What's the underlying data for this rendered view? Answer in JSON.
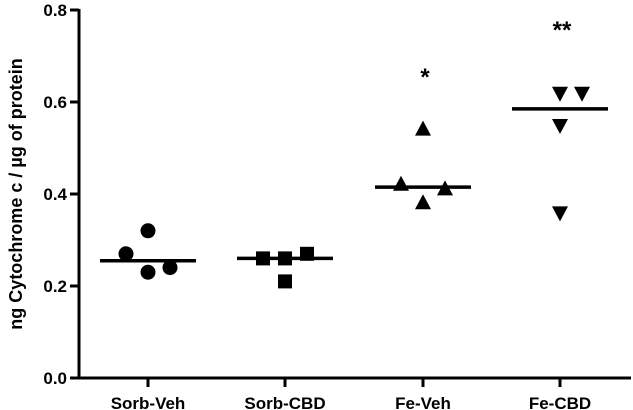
{
  "chart_data": {
    "type": "scatter",
    "title": "",
    "xlabel": "",
    "ylabel": "ng Cytochrome c / µg of protein",
    "ylim": [
      0,
      0.8
    ],
    "yticks": [
      "0.0",
      "0.2",
      "0.4",
      "0.6",
      "0.8"
    ],
    "ytick_values": [
      0,
      0.2,
      0.4,
      0.6,
      0.8
    ],
    "grid": false,
    "legend": null,
    "categories": [
      "Sorb-Veh",
      "Sorb-CBD",
      "Fe-Veh",
      "Fe-CBD"
    ],
    "series": [
      {
        "name": "Sorb-Veh",
        "marker": "circle",
        "values": [
          0.32,
          0.27,
          0.23,
          0.24
        ],
        "offsets": [
          0,
          -1,
          0,
          1
        ],
        "median": 0.255,
        "significance": ""
      },
      {
        "name": "Sorb-CBD",
        "marker": "square",
        "values": [
          0.26,
          0.26,
          0.27,
          0.21
        ],
        "offsets": [
          -1,
          0,
          1,
          0
        ],
        "median": 0.26,
        "significance": ""
      },
      {
        "name": "Fe-Veh",
        "marker": "triangle-up",
        "values": [
          0.54,
          0.42,
          0.41,
          0.38
        ],
        "offsets": [
          0,
          -1,
          1,
          0
        ],
        "median": 0.415,
        "significance": "*"
      },
      {
        "name": "Fe-CBD",
        "marker": "triangle-down",
        "values": [
          0.62,
          0.62,
          0.55,
          0.36
        ],
        "offsets": [
          0,
          1,
          0,
          0
        ],
        "median": 0.585,
        "significance": "**"
      }
    ]
  }
}
